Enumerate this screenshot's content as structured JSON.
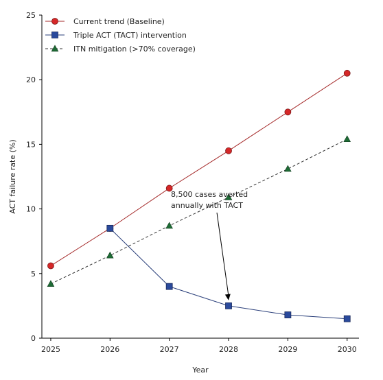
{
  "chart_data": {
    "type": "line",
    "x": [
      2025,
      2026,
      2027,
      2028,
      2029,
      2030
    ],
    "xlabel": "Year",
    "ylabel": "ACT failure rate (%)",
    "xlim": [
      2024.85,
      2030.2
    ],
    "ylim": [
      0,
      25
    ],
    "yticks": [
      0,
      5,
      10,
      15,
      20,
      25
    ],
    "grid": false,
    "legend_position": "top-left",
    "series": [
      {
        "name": "Current trend (Baseline)",
        "values": [
          5.6,
          8.5,
          11.6,
          14.5,
          17.5,
          20.5
        ],
        "color": "#d62728",
        "line_color": "#a52a2a",
        "marker": "circle",
        "line_style": "solid"
      },
      {
        "name": "Triple ACT (TACT) intervention",
        "values": [
          null,
          8.5,
          4.0,
          2.5,
          1.8,
          1.5
        ],
        "color": "#2a4a9c",
        "line_color": "#2a3f7a",
        "marker": "square",
        "line_style": "solid"
      },
      {
        "name": "ITN mitigation (>70% coverage)",
        "values": [
          4.2,
          6.4,
          8.7,
          10.9,
          13.1,
          15.4
        ],
        "color": "#1e6b35",
        "line_color": "#333333",
        "marker": "triangle",
        "line_style": "dashed"
      }
    ],
    "annotation": {
      "lines": [
        "8,500 cases averted",
        "annually with TACT"
      ],
      "arrow_to": {
        "x": 2028,
        "y": 2.5
      }
    }
  }
}
